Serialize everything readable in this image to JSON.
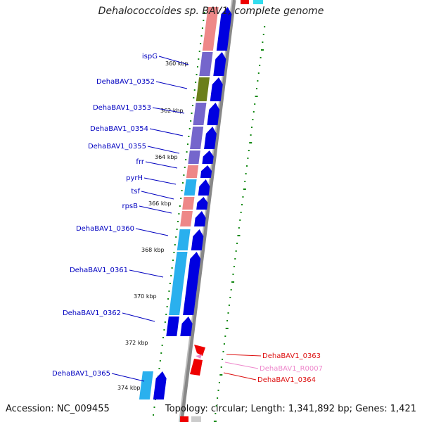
{
  "title": "Dehalococcoides sp. BAV1, complete genome",
  "footer": {
    "accession": "Accession: NC_009455",
    "topology": "Topology: circular; Length: 1,341,892 bp; Genes: 1,421"
  },
  "colors": {
    "cds": "#0000e0",
    "gene_light_blue": "#2ab0ee",
    "gene_purple": "#7566cc",
    "gene_olive": "#6b7f1a",
    "gene_salmon": "#ee8888",
    "red": "#ee0000",
    "pink": "#ee88cc",
    "label_blue": "#0000c0",
    "gc_green": "#118811"
  },
  "ticks": [
    {
      "label": "360 kbp"
    },
    {
      "label": "362 kbp"
    },
    {
      "label": "364 kbp"
    },
    {
      "label": "366 kbp"
    },
    {
      "label": "368 kbp"
    },
    {
      "label": "370 kbp"
    },
    {
      "label": "372 kbp"
    },
    {
      "label": "374 kbp"
    }
  ],
  "genes": [
    {
      "name": "ispG"
    },
    {
      "name": "DehaBAV1_0352"
    },
    {
      "name": "DehaBAV1_0353"
    },
    {
      "name": "DehaBAV1_0354"
    },
    {
      "name": "DehaBAV1_0355"
    },
    {
      "name": "frr"
    },
    {
      "name": "pyrH"
    },
    {
      "name": "tsf"
    },
    {
      "name": "rpsB"
    },
    {
      "name": "DehaBAV1_0360"
    },
    {
      "name": "DehaBAV1_0361"
    },
    {
      "name": "DehaBAV1_0362"
    },
    {
      "name": "DehaBAV1_0365"
    }
  ],
  "right_genes": [
    {
      "name": "DehaBAV1_0363",
      "color": "#dd1111"
    },
    {
      "name": "DehaBAV1_R0007",
      "color": "#ee88cc"
    },
    {
      "name": "DehaBAV1_0364",
      "color": "#dd1111"
    }
  ]
}
